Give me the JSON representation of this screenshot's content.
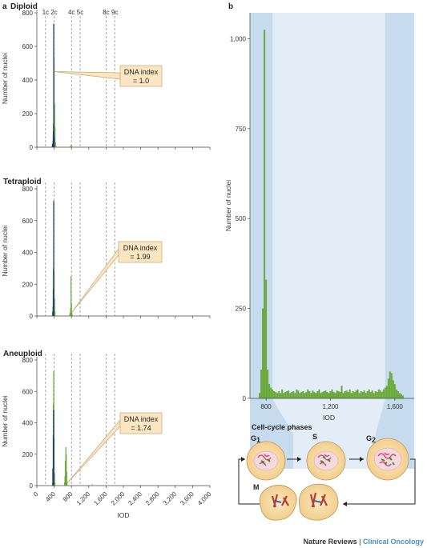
{
  "credit": {
    "publisher": "Nature Reviews",
    "separator": " | ",
    "journal": "Clinical Oncology"
  },
  "panel_a": {
    "letter": "a",
    "ploidy_ticks": [
      "1c",
      "2c",
      "4c",
      "5c",
      "8c",
      "9c"
    ],
    "ploidy_positions": [
      200,
      400,
      800,
      1000,
      1600,
      1800
    ],
    "xlabel": "IOD",
    "ylabel": "Number of nuclei"
  },
  "panel_b": {
    "letter": "b",
    "xlabel": "IOD",
    "ylabel": "Number of nuclei",
    "phases_title": "Cell-cycle phases",
    "phase_labels": {
      "g1": "G",
      "g1_sub": "1",
      "s": "S",
      "g2": "G",
      "g2_sub": "2",
      "m": "M"
    }
  },
  "colors": {
    "green": "#6aa93a",
    "navy": "#1f3a6e",
    "band_dark": "#c6dbee",
    "band_light": "#e2edf7",
    "callout_fill": "#fbe6c2",
    "callout_border": "#c9a46c"
  },
  "chart_data": [
    {
      "type": "bar",
      "title": "Diploid",
      "xlabel": "",
      "ylabel": "Number of nuclei",
      "xlim": [
        0,
        4000
      ],
      "ylim": [
        0,
        800
      ],
      "yticks": [
        "0",
        "200",
        "400",
        "600",
        "800"
      ],
      "annotation": {
        "line1": "DNA index",
        "line2": "= 1.0",
        "x": 400,
        "y": 450
      },
      "series": [
        {
          "color": "green",
          "x": [
            360,
            370,
            380,
            390,
            400,
            410,
            420,
            430,
            440,
            780,
            790,
            800,
            810
          ],
          "values": [
            15,
            40,
            140,
            720,
            530,
            260,
            120,
            30,
            10,
            8,
            12,
            10,
            5
          ]
        },
        {
          "color": "navy",
          "x": [
            360,
            380,
            390,
            400
          ],
          "values": [
            20,
            95,
            735,
            60
          ]
        }
      ]
    },
    {
      "type": "bar",
      "title": "Tetraploid",
      "xlabel": "",
      "ylabel": "Number of nuclei",
      "xlim": [
        0,
        4000
      ],
      "ylim": [
        0,
        800
      ],
      "yticks": [
        "0",
        "200",
        "400",
        "600",
        "800"
      ],
      "annotation": {
        "line1": "DNA index",
        "line2": "= 1.99",
        "x": 800,
        "y": 20
      },
      "series": [
        {
          "color": "green",
          "x": [
            360,
            370,
            380,
            390,
            400,
            410,
            420,
            760,
            770,
            780,
            790,
            800,
            810,
            820
          ],
          "values": [
            20,
            60,
            300,
            700,
            280,
            110,
            30,
            10,
            20,
            50,
            250,
            80,
            30,
            10
          ]
        },
        {
          "color": "navy",
          "x": [
            370,
            380,
            390
          ],
          "values": [
            30,
            170,
            725
          ]
        }
      ]
    },
    {
      "type": "bar",
      "title": "Aneuploid",
      "xlabel": "IOD",
      "ylabel": "Number of nuclei",
      "xlim": [
        0,
        4000
      ],
      "xticks": [
        "0",
        "400",
        "800",
        "1,200",
        "1,600",
        "2,000",
        "2,400",
        "2,800",
        "3,200",
        "3,600",
        "4,000"
      ],
      "ylim": [
        0,
        800
      ],
      "yticks": [
        "0",
        "200",
        "400",
        "600",
        "800"
      ],
      "annotation": {
        "line1": "DNA index",
        "line2": "= 1.74",
        "x": 700,
        "y": 15
      },
      "series": [
        {
          "color": "green",
          "x": [
            360,
            370,
            380,
            390,
            400,
            410,
            420,
            640,
            650,
            660,
            670,
            680,
            690,
            700,
            1280
          ],
          "values": [
            20,
            110,
            520,
            730,
            300,
            80,
            20,
            20,
            60,
            160,
            245,
            200,
            90,
            25,
            8
          ]
        },
        {
          "color": "navy",
          "x": [
            370,
            380,
            390
          ],
          "values": [
            110,
            320,
            480
          ]
        }
      ]
    },
    {
      "type": "bar",
      "xlabel": "IOD",
      "ylabel": "Number of nuclei",
      "xlim": [
        700,
        1720
      ],
      "xticks": [
        "800",
        "1,200",
        "1,600"
      ],
      "xtick_values": [
        800,
        1200,
        1600
      ],
      "ylim": [
        0,
        1050
      ],
      "yticks": [
        "0",
        "250",
        "500",
        "750",
        "1,000"
      ],
      "band_regions": {
        "g1_end": 840,
        "g2_start": 1540
      },
      "series": [
        {
          "color": "green",
          "x": [
            760,
            770,
            780,
            790,
            800,
            810,
            820,
            830,
            840,
            850,
            860,
            870,
            880,
            890,
            900,
            910,
            920,
            930,
            940,
            950,
            960,
            970,
            980,
            990,
            1000,
            1010,
            1020,
            1030,
            1040,
            1050,
            1060,
            1070,
            1080,
            1090,
            1100,
            1110,
            1120,
            1130,
            1140,
            1150,
            1160,
            1170,
            1180,
            1190,
            1200,
            1210,
            1220,
            1230,
            1240,
            1250,
            1260,
            1270,
            1280,
            1290,
            1300,
            1310,
            1320,
            1330,
            1340,
            1350,
            1360,
            1370,
            1380,
            1390,
            1400,
            1410,
            1420,
            1430,
            1440,
            1450,
            1460,
            1470,
            1480,
            1490,
            1500,
            1510,
            1520,
            1530,
            1540,
            1550,
            1560,
            1570,
            1580,
            1590,
            1600,
            1610,
            1620,
            1630,
            1640,
            1650
          ],
          "values": [
            15,
            80,
            250,
            1025,
            330,
            80,
            40,
            30,
            25,
            20,
            18,
            15,
            20,
            15,
            25,
            15,
            18,
            20,
            22,
            15,
            18,
            20,
            15,
            25,
            22,
            15,
            18,
            20,
            15,
            18,
            25,
            20,
            15,
            22,
            18,
            15,
            20,
            25,
            15,
            18,
            20,
            22,
            18,
            15,
            20,
            25,
            18,
            15,
            22,
            20,
            18,
            35,
            15,
            20,
            22,
            18,
            25,
            15,
            20,
            18,
            22,
            25,
            15,
            20,
            18,
            22,
            15,
            20,
            25,
            18,
            22,
            15,
            20,
            18,
            25,
            22,
            18,
            25,
            30,
            35,
            55,
            75,
            70,
            50,
            40,
            25,
            20,
            15,
            12,
            8
          ]
        }
      ]
    }
  ]
}
